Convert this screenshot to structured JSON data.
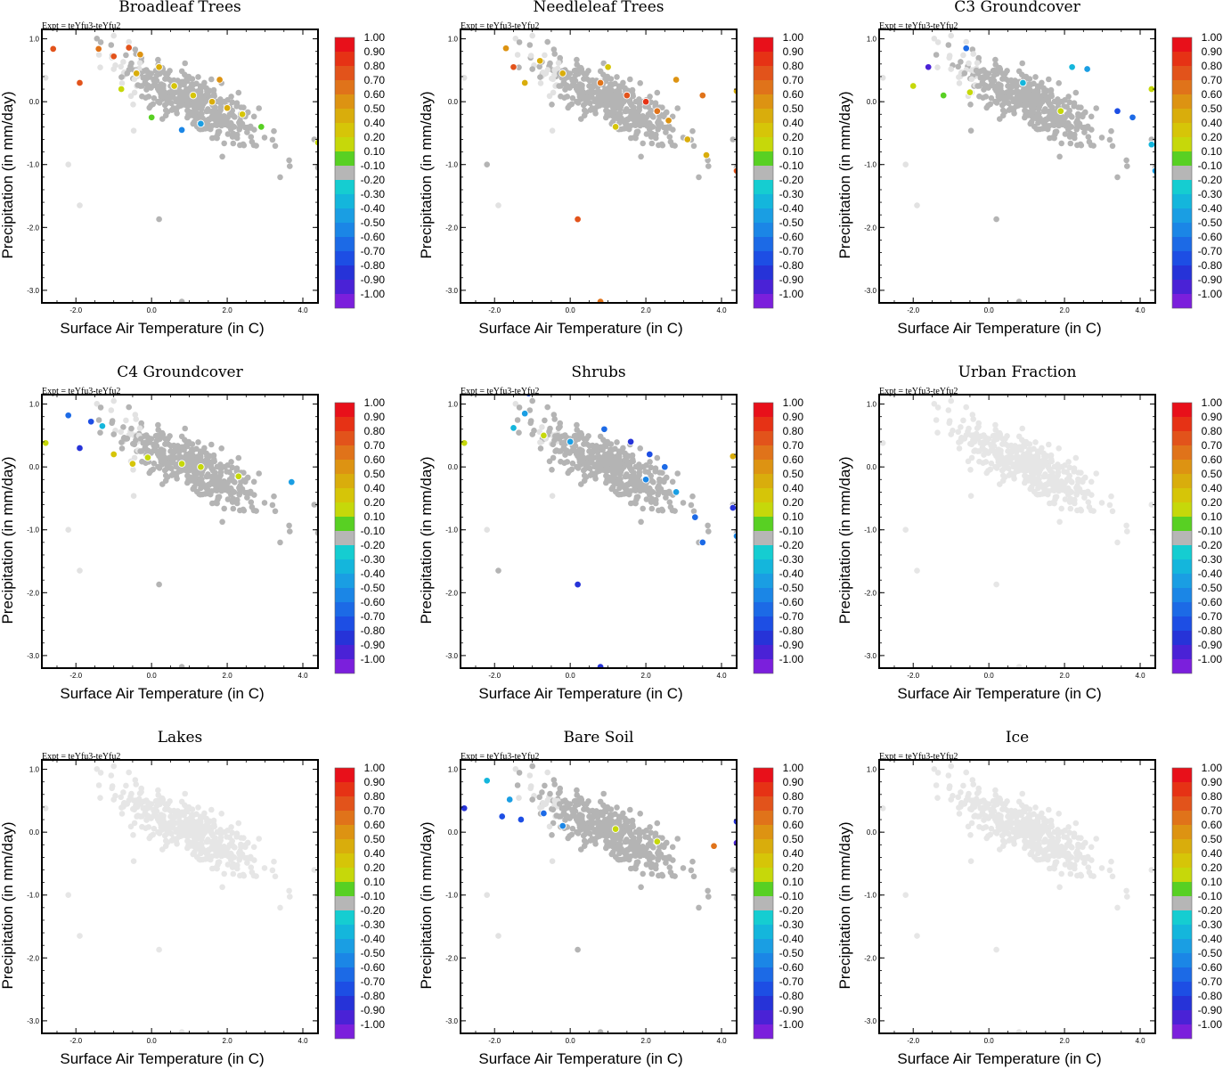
{
  "figure": {
    "expt_label": "Expt = teYfu3-teYfu2",
    "xlabel": "Surface Air Temperature (in C)",
    "ylabel": "Precipitation (in mm/day)"
  },
  "colorbar": {
    "labels": [
      "1.00",
      "0.90",
      "0.80",
      "0.70",
      "0.60",
      "0.50",
      "0.40",
      "0.20",
      "0.10",
      "-0.10",
      "-0.20",
      "-0.30",
      "-0.40",
      "-0.50",
      "-0.60",
      "-0.70",
      "-0.80",
      "-0.90",
      "-1.00"
    ],
    "colors": [
      "#e8101a",
      "#e63215",
      "#e2531b",
      "#e0731a",
      "#dd9312",
      "#d9ad0c",
      "#d6c508",
      "#c6d80a",
      "#58d023",
      "#b6b6b6",
      "#15cdd1",
      "#14b6dc",
      "#1a9ee3",
      "#1b86e6",
      "#1c6ae6",
      "#1d4ee4",
      "#2633d8",
      "#4a22d6",
      "#7b1fdc"
    ]
  },
  "chart_data": [
    {
      "type": "scatter",
      "title": "Broadleaf Trees",
      "xlim": [
        -2.9,
        4.4
      ],
      "ylim": [
        -3.2,
        1.15
      ],
      "xticks": [
        "-2.0",
        "0.0",
        "2.0",
        "4.0"
      ],
      "yticks": [
        "1.0",
        "0.0",
        "-1.0",
        "-2.0",
        "-3.0"
      ],
      "points": [
        [
          -1.4,
          0.84,
          0.7
        ],
        [
          -1.0,
          0.72,
          0.8
        ],
        [
          -0.6,
          0.86,
          0.8
        ],
        [
          -0.3,
          0.75,
          0.6
        ],
        [
          0.2,
          0.55,
          0.4
        ],
        [
          0.6,
          0.25,
          0.3
        ],
        [
          1.1,
          0.1,
          0.3
        ],
        [
          1.6,
          0.0,
          0.5
        ],
        [
          2.0,
          -0.1,
          0.4
        ],
        [
          2.4,
          -0.2,
          0.3
        ],
        [
          1.3,
          -0.35,
          -0.3
        ],
        [
          0.8,
          -0.45,
          -0.4
        ],
        [
          -0.8,
          0.2,
          0.2
        ],
        [
          -1.9,
          0.3,
          0.8
        ],
        [
          -2.6,
          0.84,
          0.8
        ],
        [
          2.9,
          -0.4,
          0.1
        ],
        [
          4.4,
          -0.65,
          0.2
        ],
        [
          0.0,
          -0.25,
          0.15
        ],
        [
          1.8,
          0.35,
          0.6
        ],
        [
          -0.4,
          0.45,
          0.5
        ]
      ]
    },
    {
      "type": "scatter",
      "title": "Needleleaf Trees",
      "xlim": [
        -2.9,
        4.4
      ],
      "ylim": [
        -3.2,
        1.15
      ],
      "xticks": [
        "-2.0",
        "0.0",
        "2.0",
        "4.0"
      ],
      "yticks": [
        "1.0",
        "0.0",
        "-1.0",
        "-2.0",
        "-3.0"
      ],
      "points": [
        [
          -1.7,
          0.85,
          0.6
        ],
        [
          -1.5,
          0.55,
          0.8
        ],
        [
          -0.8,
          0.65,
          0.5
        ],
        [
          -0.2,
          0.45,
          0.4
        ],
        [
          0.8,
          0.3,
          0.7
        ],
        [
          1.5,
          0.1,
          0.8
        ],
        [
          2.0,
          0.0,
          0.9
        ],
        [
          2.3,
          -0.15,
          0.7
        ],
        [
          2.6,
          -0.3,
          0.6
        ],
        [
          3.1,
          -0.6,
          0.5
        ],
        [
          3.6,
          -0.85,
          0.5
        ],
        [
          4.4,
          -1.1,
          0.8
        ],
        [
          0.2,
          -1.87,
          0.8
        ],
        [
          0.8,
          -3.18,
          0.7
        ],
        [
          1.2,
          -0.4,
          0.3
        ],
        [
          -1.2,
          0.3,
          0.4
        ],
        [
          3.5,
          0.1,
          0.7
        ],
        [
          4.4,
          0.17,
          0.5
        ],
        [
          2.8,
          0.35,
          0.6
        ],
        [
          1.0,
          0.55,
          0.3
        ]
      ]
    },
    {
      "type": "scatter",
      "title": "C3 Groundcover",
      "xlim": [
        -2.9,
        4.4
      ],
      "ylim": [
        -3.2,
        1.15
      ],
      "xticks": [
        "-2.0",
        "0.0",
        "2.0",
        "4.0"
      ],
      "yticks": [
        "1.0",
        "0.0",
        "-1.0",
        "-2.0",
        "-3.0"
      ],
      "points": [
        [
          -1.6,
          0.55,
          -0.9
        ],
        [
          -2.0,
          0.25,
          0.2
        ],
        [
          -0.6,
          0.85,
          -0.6
        ],
        [
          0.9,
          0.3,
          -0.2
        ],
        [
          2.2,
          0.55,
          -0.2
        ],
        [
          3.4,
          -0.15,
          -0.7
        ],
        [
          3.8,
          -0.25,
          -0.5
        ],
        [
          4.3,
          0.2,
          0.2
        ],
        [
          4.4,
          -1.1,
          -0.3
        ],
        [
          -0.5,
          0.15,
          0.2
        ],
        [
          -1.2,
          0.1,
          0.1
        ],
        [
          1.9,
          -0.15,
          0.2
        ],
        [
          4.3,
          -0.68,
          -0.2
        ],
        [
          2.6,
          0.52,
          -0.3
        ]
      ]
    },
    {
      "type": "scatter",
      "title": "C4 Groundcover",
      "xlim": [
        -2.9,
        4.4
      ],
      "ylim": [
        -3.2,
        1.15
      ],
      "xticks": [
        "-2.0",
        "0.0",
        "2.0",
        "4.0"
      ],
      "yticks": [
        "1.0",
        "0.0",
        "-1.0",
        "-2.0",
        "-3.0"
      ],
      "points": [
        [
          -2.2,
          0.82,
          -0.6
        ],
        [
          -1.9,
          0.3,
          -0.8
        ],
        [
          -1.3,
          0.65,
          -0.2
        ],
        [
          -1.0,
          0.2,
          0.3
        ],
        [
          -0.5,
          0.05,
          0.3
        ],
        [
          -0.1,
          0.15,
          0.2
        ],
        [
          0.8,
          0.05,
          0.2
        ],
        [
          1.3,
          0.0,
          0.2
        ],
        [
          2.3,
          -0.15,
          0.2
        ],
        [
          3.7,
          -0.24,
          -0.3
        ],
        [
          -2.8,
          0.38,
          0.2
        ],
        [
          -1.6,
          0.72,
          -0.7
        ]
      ]
    },
    {
      "type": "scatter",
      "title": "Shrubs",
      "xlim": [
        -2.9,
        4.4
      ],
      "ylim": [
        -3.2,
        1.15
      ],
      "xticks": [
        "-2.0",
        "0.0",
        "2.0",
        "4.0"
      ],
      "yticks": [
        "1.0",
        "0.0",
        "-1.0",
        "-2.0",
        "-3.0"
      ],
      "points": [
        [
          -1.5,
          0.62,
          -0.2
        ],
        [
          -1.2,
          0.85,
          -0.3
        ],
        [
          -0.7,
          0.5,
          0.2
        ],
        [
          0.0,
          0.4,
          -0.3
        ],
        [
          0.9,
          0.6,
          -0.6
        ],
        [
          1.6,
          0.4,
          -0.8
        ],
        [
          2.1,
          0.2,
          -0.7
        ],
        [
          2.5,
          0.0,
          -0.5
        ],
        [
          2.0,
          -0.2,
          -0.4
        ],
        [
          3.3,
          -0.8,
          -0.5
        ],
        [
          3.5,
          -1.2,
          -0.6
        ],
        [
          4.3,
          -0.65,
          -0.8
        ],
        [
          4.4,
          -1.1,
          -0.4
        ],
        [
          0.2,
          -1.87,
          -0.8
        ],
        [
          0.8,
          -3.18,
          -0.8
        ],
        [
          -2.8,
          0.38,
          0.2
        ],
        [
          -1.1,
          1.17,
          -0.7
        ],
        [
          2.8,
          -0.4,
          -0.3
        ],
        [
          4.3,
          0.17,
          0.4
        ]
      ]
    },
    {
      "type": "scatter",
      "title": "Urban Fraction",
      "xlim": [
        -2.9,
        4.4
      ],
      "ylim": [
        -3.2,
        1.15
      ],
      "xticks": [
        "-2.0",
        "0.0",
        "2.0",
        "4.0"
      ],
      "yticks": [
        "1.0",
        "0.0",
        "-1.0",
        "-2.0",
        "-3.0"
      ],
      "points": []
    },
    {
      "type": "scatter",
      "title": "Lakes",
      "xlim": [
        -2.9,
        4.4
      ],
      "ylim": [
        -3.2,
        1.15
      ],
      "xticks": [
        "-2.0",
        "0.0",
        "2.0",
        "4.0"
      ],
      "yticks": [
        "1.0",
        "0.0",
        "-1.0",
        "-2.0",
        "-3.0"
      ],
      "points": []
    },
    {
      "type": "scatter",
      "title": "Bare Soil",
      "xlim": [
        -2.9,
        4.4
      ],
      "ylim": [
        -3.2,
        1.15
      ],
      "xticks": [
        "-2.0",
        "0.0",
        "2.0",
        "4.0"
      ],
      "yticks": [
        "1.0",
        "0.0",
        "-1.0",
        "-2.0",
        "-3.0"
      ],
      "points": [
        [
          -2.8,
          0.38,
          -0.8
        ],
        [
          -2.2,
          0.82,
          -0.2
        ],
        [
          -1.8,
          0.25,
          -0.7
        ],
        [
          -1.6,
          0.52,
          -0.3
        ],
        [
          -0.7,
          0.3,
          -0.6
        ],
        [
          -0.2,
          0.1,
          -0.4
        ],
        [
          1.2,
          0.05,
          0.2
        ],
        [
          2.3,
          -0.15,
          0.2
        ],
        [
          3.8,
          -0.22,
          0.7
        ],
        [
          4.4,
          0.17,
          -0.8
        ],
        [
          4.4,
          -0.17,
          -0.9
        ],
        [
          -1.3,
          0.2,
          -0.7
        ]
      ]
    },
    {
      "type": "scatter",
      "title": "Ice",
      "xlim": [
        -2.9,
        4.4
      ],
      "ylim": [
        -3.2,
        1.15
      ],
      "xticks": [
        "-2.0",
        "0.0",
        "2.0",
        "4.0"
      ],
      "yticks": [
        "1.0",
        "0.0",
        "-1.0",
        "-2.0",
        "-3.0"
      ],
      "points": []
    }
  ]
}
